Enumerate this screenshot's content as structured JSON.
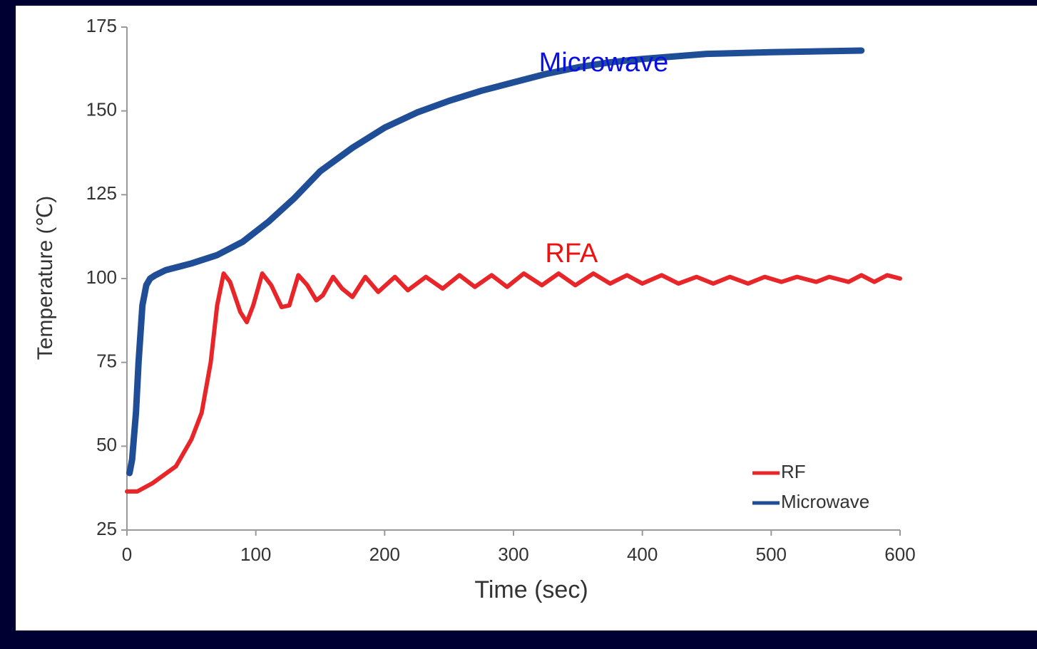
{
  "chart_data": {
    "type": "line",
    "xlabel": "Time (sec)",
    "ylabel": "Temperature (℃)",
    "xlim": [
      0,
      600
    ],
    "xticks": [
      0,
      100,
      200,
      300,
      400,
      500,
      600
    ],
    "ylim": [
      25,
      175
    ],
    "yticks": [
      25,
      50,
      75,
      100,
      125,
      150,
      175
    ],
    "legend": "lower right",
    "annotations": [
      {
        "text": "Microwave",
        "color": "#0a10e0",
        "x": 370,
        "y": 164
      },
      {
        "text": "RFA",
        "color": "#ee1111",
        "x": 345,
        "y": 107
      }
    ],
    "series": [
      {
        "name": "RF",
        "color": "#e8262a",
        "x": [
          0,
          8,
          20,
          38,
          50,
          58,
          65,
          70,
          75,
          80,
          88,
          93,
          98,
          105,
          112,
          120,
          126,
          133,
          140,
          147,
          152,
          160,
          167,
          175,
          185,
          195,
          208,
          218,
          232,
          245,
          258,
          270,
          283,
          295,
          308,
          322,
          335,
          348,
          362,
          375,
          388,
          400,
          415,
          428,
          442,
          455,
          468,
          482,
          495,
          508,
          520,
          535,
          545,
          560,
          570,
          580,
          590,
          600
        ],
        "values": [
          36.5,
          36.5,
          39,
          44,
          52,
          60,
          75,
          92,
          101.5,
          99,
          90,
          87,
          92,
          101.5,
          98,
          91.5,
          92,
          101,
          98,
          93.5,
          95,
          100.5,
          97,
          94.5,
          100.5,
          96,
          100.5,
          96.5,
          100.5,
          97,
          101,
          97.5,
          101,
          97.5,
          101.5,
          98,
          101.5,
          98,
          101.5,
          98.5,
          101,
          98.5,
          101,
          98.5,
          100.5,
          98.5,
          100.5,
          98.5,
          100.5,
          99,
          100.5,
          99,
          100.5,
          99,
          101,
          99,
          101,
          100
        ]
      },
      {
        "name": "Microwave",
        "color": "#1f4e96",
        "x": [
          2,
          4,
          7,
          9,
          12,
          15,
          18,
          22,
          30,
          50,
          70,
          90,
          110,
          130,
          150,
          175,
          200,
          225,
          250,
          275,
          300,
          325,
          350,
          375,
          400,
          450,
          500,
          570
        ],
        "values": [
          42,
          46,
          60,
          75,
          92,
          98,
          100,
          101,
          102.5,
          104.5,
          107,
          111,
          117,
          124,
          132,
          139,
          145,
          149.5,
          153,
          156,
          158.5,
          161,
          163,
          164.5,
          165.5,
          167,
          167.5,
          168
        ]
      }
    ]
  }
}
